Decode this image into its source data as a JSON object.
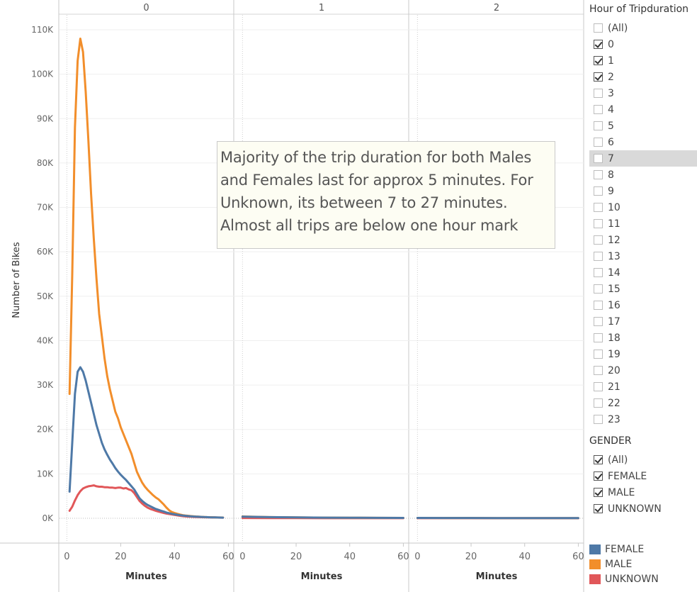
{
  "chart_data": {
    "type": "line",
    "panel_headers": [
      "0",
      "1",
      "2"
    ],
    "xlabel": "Minutes",
    "ylabel": "Number of Bikes",
    "x_ticks": [
      "0",
      "20",
      "40",
      "60"
    ],
    "y_ticks": [
      "0K",
      "10K",
      "20K",
      "30K",
      "40K",
      "50K",
      "60K",
      "70K",
      "80K",
      "90K",
      "100K",
      "110K"
    ],
    "xlim": [
      -3,
      62
    ],
    "ylim": [
      -2000,
      113000
    ],
    "series": [
      {
        "name": "MALE",
        "color": "#f28e2b",
        "panels": [
          {
            "x": [
              1,
              2,
              3,
              4,
              5,
              6,
              7,
              8,
              9,
              10,
              11,
              12,
              13,
              14,
              15,
              16,
              17,
              18,
              19,
              20,
              21,
              22,
              23,
              24,
              25,
              26,
              27,
              28,
              29,
              30,
              31,
              32,
              33,
              34,
              35,
              36,
              37,
              38,
              39,
              40,
              41,
              42,
              43,
              44,
              45,
              46,
              47,
              48,
              49,
              50,
              51,
              52,
              53,
              54,
              55,
              56,
              57,
              58
            ],
            "y": [
              28000,
              55000,
              88000,
              103000,
              108000,
              105000,
              96000,
              85000,
              73000,
              63000,
              54000,
              46000,
              41000,
              36000,
              32000,
              29000,
              26500,
              24000,
              22500,
              20500,
              19000,
              17500,
              16000,
              14500,
              12500,
              10500,
              9200,
              8000,
              7100,
              6400,
              5800,
              5200,
              4700,
              4300,
              3700,
              3100,
              2400,
              1800,
              1400,
              1200,
              1000,
              850,
              700,
              620,
              560,
              500,
              450,
              400,
              360,
              320,
              290,
              260,
              240,
              220,
              200,
              180,
              170,
              160
            ]
          },
          {
            "x": [
              0,
              10,
              20,
              30,
              40,
              50,
              60
            ],
            "y": [
              400,
              250,
              200,
              150,
              120,
              100,
              80
            ]
          },
          {
            "x": [
              0,
              10,
              20,
              30,
              40,
              50,
              60
            ],
            "y": [
              80,
              70,
              60,
              50,
              50,
              40,
              40
            ]
          }
        ]
      },
      {
        "name": "FEMALE",
        "color": "#4e79a7",
        "panels": [
          {
            "x": [
              1,
              2,
              3,
              4,
              5,
              6,
              7,
              8,
              9,
              10,
              11,
              12,
              13,
              14,
              15,
              16,
              17,
              18,
              19,
              20,
              21,
              22,
              23,
              24,
              25,
              26,
              27,
              28,
              29,
              30,
              31,
              32,
              33,
              34,
              35,
              36,
              37,
              38,
              39,
              40,
              41,
              42,
              43,
              44,
              45,
              46,
              47,
              48,
              49,
              50,
              51,
              52,
              53,
              54,
              55,
              56,
              57,
              58
            ],
            "y": [
              6000,
              17000,
              28000,
              33000,
              34000,
              33000,
              31000,
              28500,
              26000,
              23500,
              21000,
              19000,
              17000,
              15500,
              14300,
              13200,
              12300,
              11300,
              10500,
              9800,
              9200,
              8600,
              7900,
              7200,
              6500,
              5500,
              4500,
              3900,
              3400,
              3000,
              2700,
              2400,
              2100,
              1900,
              1700,
              1500,
              1300,
              1150,
              1000,
              900,
              800,
              700,
              620,
              560,
              500,
              450,
              400,
              360,
              330,
              300,
              270,
              250,
              230,
              210,
              190,
              170,
              160,
              150
            ]
          },
          {
            "x": [
              0,
              10,
              20,
              30,
              40,
              50,
              60
            ],
            "y": [
              350,
              250,
              200,
              150,
              120,
              100,
              80
            ]
          },
          {
            "x": [
              0,
              10,
              20,
              30,
              40,
              50,
              60
            ],
            "y": [
              80,
              70,
              60,
              50,
              50,
              40,
              40
            ]
          }
        ]
      },
      {
        "name": "UNKNOWN",
        "color": "#e15759",
        "panels": [
          {
            "x": [
              1,
              2,
              3,
              4,
              5,
              6,
              7,
              8,
              9,
              10,
              11,
              12,
              13,
              14,
              15,
              16,
              17,
              18,
              19,
              20,
              21,
              22,
              23,
              24,
              25,
              26,
              27,
              28,
              29,
              30,
              31,
              32,
              33,
              34,
              35,
              36,
              37,
              38,
              39,
              40,
              41,
              42,
              43,
              44,
              45,
              46,
              47,
              48,
              49,
              50,
              51,
              52,
              53,
              54,
              55,
              56,
              57,
              58
            ],
            "y": [
              1700,
              2600,
              4000,
              5200,
              6100,
              6700,
              7000,
              7200,
              7300,
              7400,
              7200,
              7100,
              7100,
              7000,
              7000,
              6900,
              6900,
              6800,
              6900,
              6900,
              6700,
              6800,
              6500,
              6300,
              5700,
              4800,
              3900,
              3300,
              2800,
              2400,
              2100,
              1900,
              1700,
              1500,
              1350,
              1200,
              1050,
              950,
              850,
              750,
              650,
              560,
              480,
              420,
              370,
              330,
              300,
              280,
              260,
              240,
              220,
              200,
              190,
              180,
              170,
              160,
              150,
              140
            ]
          },
          {
            "x": [
              0,
              10,
              20,
              30,
              40,
              50,
              60
            ],
            "y": [
              60,
              40,
              30,
              20,
              15,
              10,
              10
            ]
          },
          {
            "x": [
              0,
              10,
              20,
              30,
              40,
              50,
              60
            ],
            "y": [
              10,
              10,
              10,
              5,
              5,
              5,
              5
            ]
          }
        ]
      }
    ],
    "annotation": [
      "Majority of the trip duration for both Males",
      "and Females last for approx 5 minutes. For",
      "Unknown, its between 7 to 27 minutes.",
      "Almost all trips are below one hour mark"
    ],
    "gridlines": true,
    "legend_position": "bottom-right"
  },
  "filters": {
    "hour": {
      "title": "Hour of Tripduration",
      "items": [
        {
          "label": "(All)",
          "checked": false
        },
        {
          "label": "0",
          "checked": true
        },
        {
          "label": "1",
          "checked": true
        },
        {
          "label": "2",
          "checked": true
        },
        {
          "label": "3",
          "checked": false
        },
        {
          "label": "4",
          "checked": false
        },
        {
          "label": "5",
          "checked": false
        },
        {
          "label": "6",
          "checked": false
        },
        {
          "label": "7",
          "checked": false,
          "highlighted": true
        },
        {
          "label": "8",
          "checked": false
        },
        {
          "label": "9",
          "checked": false
        },
        {
          "label": "10",
          "checked": false
        },
        {
          "label": "11",
          "checked": false
        },
        {
          "label": "12",
          "checked": false
        },
        {
          "label": "13",
          "checked": false
        },
        {
          "label": "14",
          "checked": false
        },
        {
          "label": "15",
          "checked": false
        },
        {
          "label": "16",
          "checked": false
        },
        {
          "label": "17",
          "checked": false
        },
        {
          "label": "18",
          "checked": false
        },
        {
          "label": "19",
          "checked": false
        },
        {
          "label": "20",
          "checked": false
        },
        {
          "label": "21",
          "checked": false
        },
        {
          "label": "22",
          "checked": false
        },
        {
          "label": "23",
          "checked": false
        }
      ]
    },
    "gender": {
      "title": "GENDER",
      "items": [
        {
          "label": "(All)",
          "checked": true
        },
        {
          "label": "FEMALE",
          "checked": true
        },
        {
          "label": "MALE",
          "checked": true
        },
        {
          "label": "UNKNOWN",
          "checked": true
        }
      ]
    }
  },
  "legend": [
    {
      "label": "FEMALE",
      "color": "#4e79a7"
    },
    {
      "label": "MALE",
      "color": "#f28e2b"
    },
    {
      "label": "UNKNOWN",
      "color": "#e15759"
    }
  ]
}
